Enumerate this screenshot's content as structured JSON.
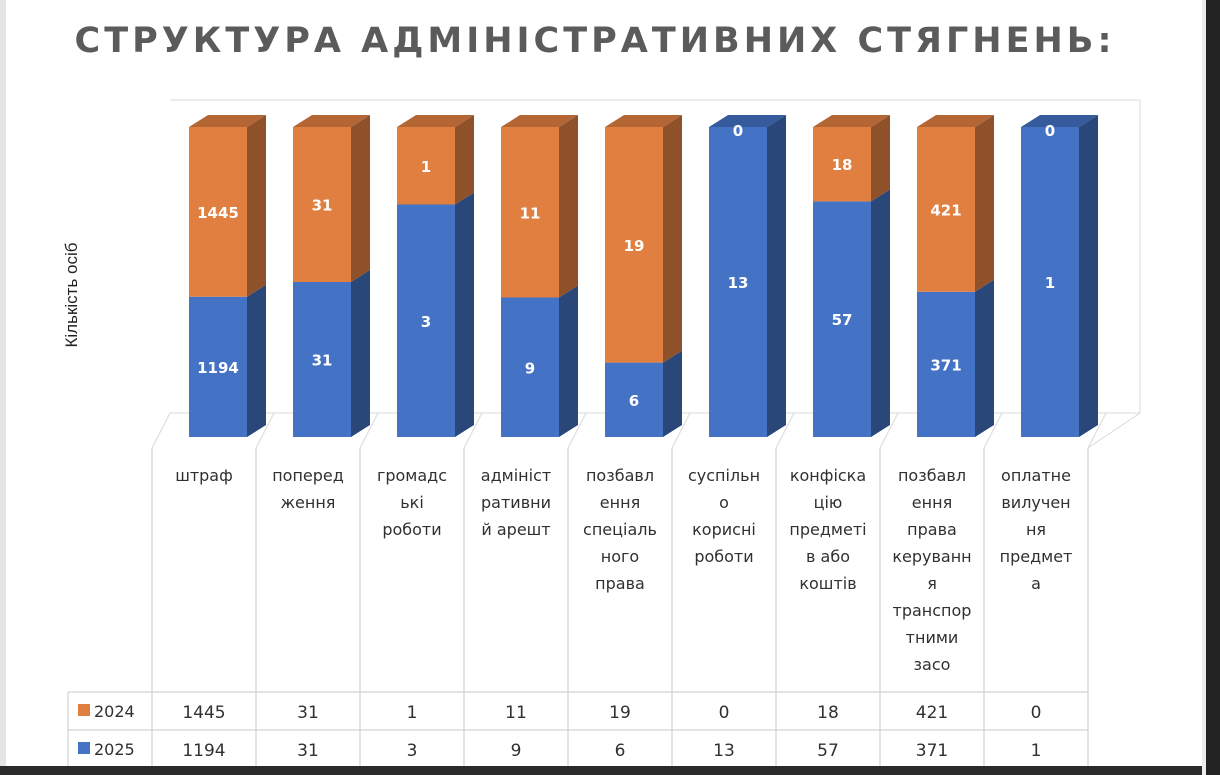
{
  "colors": {
    "s2025": "#4472c4",
    "s2024": "#e07f40",
    "grid": "#d9d9d9",
    "table_border": "#c8c8c8"
  },
  "chart_data": {
    "type": "bar",
    "stacked": true,
    "three_d": true,
    "title": "СТРУКТУРА АДМІНІСТРАТИВНИХ СТЯГНЕНЬ:",
    "ylabel": "Кількість осіб",
    "xlabel": "",
    "normalized_100_percent": true,
    "grid": false,
    "legend": "data-table-left",
    "categories": [
      [
        "штраф"
      ],
      [
        "поперед",
        "ження"
      ],
      [
        "громадс",
        "ькі",
        "роботи"
      ],
      [
        "адмініст",
        "ративни",
        "й арешт"
      ],
      [
        "позбавл",
        "ення",
        "спеціаль",
        "ного",
        "права"
      ],
      [
        "суспільн",
        "о",
        "корисні",
        "роботи"
      ],
      [
        "конфіска",
        "цію",
        "предметі",
        "в або",
        "коштів"
      ],
      [
        "позбавл",
        "ення",
        "права",
        "керуванн",
        "я",
        "транспор",
        "тними",
        "засо"
      ],
      [
        "оплатне",
        "вилучен",
        "ня",
        "предмет",
        "а"
      ]
    ],
    "series": [
      {
        "name": "2025",
        "color": "#4472c4",
        "values": [
          1194,
          31,
          3,
          9,
          6,
          13,
          57,
          371,
          1
        ]
      },
      {
        "name": "2024",
        "color": "#e07f40",
        "values": [
          1445,
          31,
          1,
          11,
          19,
          0,
          18,
          421,
          0
        ]
      }
    ]
  }
}
